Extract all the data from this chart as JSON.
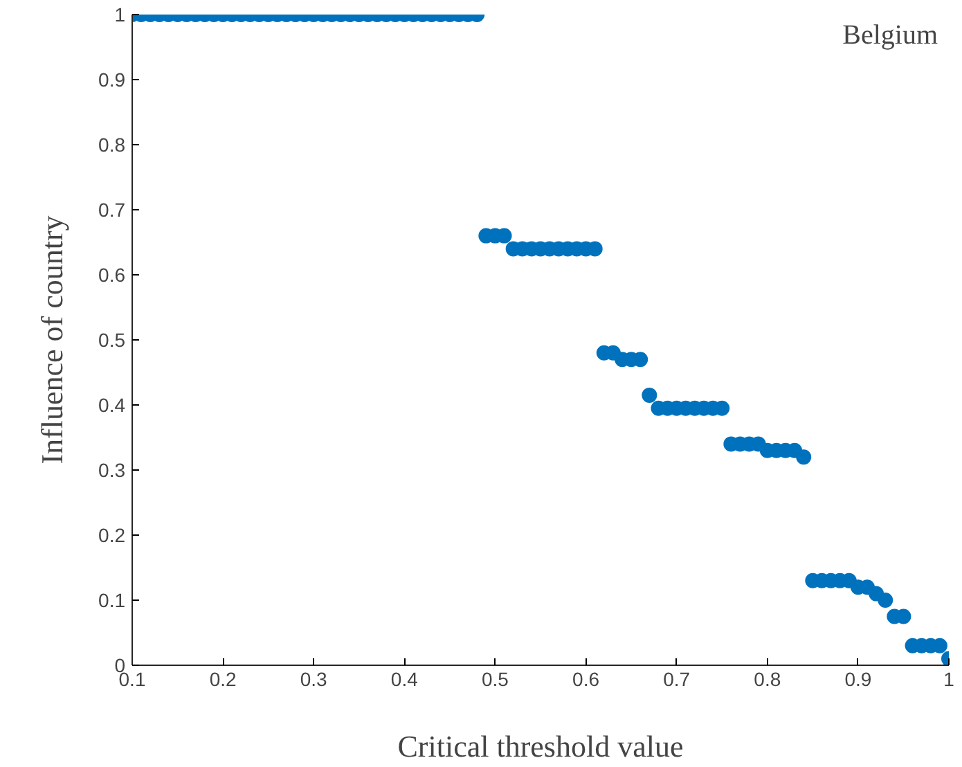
{
  "chart_data": {
    "type": "scatter",
    "xlabel": "Critical threshold value",
    "ylabel": "Influence of country",
    "annotations": [
      "Belgium"
    ],
    "x": [
      0.1,
      0.11,
      0.12,
      0.13,
      0.14,
      0.15,
      0.16,
      0.17,
      0.18,
      0.19,
      0.2,
      0.21,
      0.22,
      0.23,
      0.24,
      0.25,
      0.26,
      0.27,
      0.28,
      0.29,
      0.3,
      0.31,
      0.32,
      0.33,
      0.34,
      0.35,
      0.36,
      0.37,
      0.38,
      0.39,
      0.4,
      0.41,
      0.42,
      0.43,
      0.44,
      0.45,
      0.46,
      0.47,
      0.48,
      0.49,
      0.5,
      0.51,
      0.52,
      0.53,
      0.54,
      0.55,
      0.56,
      0.57,
      0.58,
      0.59,
      0.6,
      0.61,
      0.62,
      0.63,
      0.64,
      0.65,
      0.66,
      0.67,
      0.68,
      0.69,
      0.7,
      0.71,
      0.72,
      0.73,
      0.74,
      0.75,
      0.76,
      0.77,
      0.78,
      0.79,
      0.8,
      0.81,
      0.82,
      0.83,
      0.84,
      0.85,
      0.86,
      0.87,
      0.88,
      0.89,
      0.9,
      0.91,
      0.92,
      0.93,
      0.94,
      0.95,
      0.96,
      0.97,
      0.98,
      0.99,
      1.0
    ],
    "series": [
      {
        "color": "#0072bd",
        "values": [
          1,
          1,
          1,
          1,
          1,
          1,
          1,
          1,
          1,
          1,
          1,
          1,
          1,
          1,
          1,
          1,
          1,
          1,
          1,
          1,
          1,
          1,
          1,
          1,
          1,
          1,
          1,
          1,
          1,
          1,
          1,
          1,
          1,
          1,
          1,
          1,
          1,
          1,
          1,
          0.66,
          0.66,
          0.66,
          0.64,
          0.64,
          0.64,
          0.64,
          0.64,
          0.64,
          0.64,
          0.64,
          0.64,
          0.64,
          0.48,
          0.48,
          0.47,
          0.47,
          0.47,
          0.415,
          0.395,
          0.395,
          0.395,
          0.395,
          0.395,
          0.395,
          0.395,
          0.395,
          0.34,
          0.34,
          0.34,
          0.34,
          0.33,
          0.33,
          0.33,
          0.33,
          0.32,
          0.13,
          0.13,
          0.13,
          0.13,
          0.13,
          0.12,
          0.12,
          0.11,
          0.1,
          0.075,
          0.075,
          0.03,
          0.03,
          0.03,
          0.03,
          0.01
        ]
      }
    ],
    "marker": "circle",
    "grid": false,
    "xlim": [
      0.1,
      1
    ],
    "ylim": [
      0,
      1
    ],
    "xticks": [
      0.1,
      0.2,
      0.3,
      0.4,
      0.5,
      0.6,
      0.7,
      0.8,
      0.9,
      1
    ],
    "yticks": [
      0,
      0.1,
      0.2,
      0.3,
      0.4,
      0.5,
      0.6,
      0.7,
      0.8,
      0.9,
      1
    ]
  }
}
